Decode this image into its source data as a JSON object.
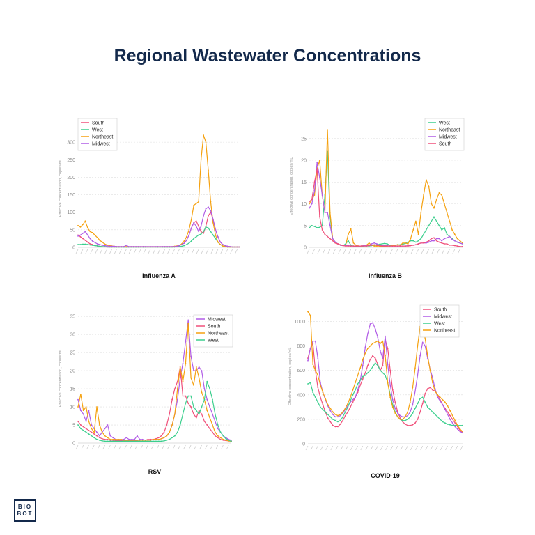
{
  "title": "Regional Wastewater Concentrations",
  "logo": {
    "line1": "BIO",
    "line2": "BOT"
  },
  "colors": {
    "South": "#f0507a",
    "West": "#3ccf8e",
    "Northeast": "#f5a10f",
    "Midwest": "#b15ce6"
  },
  "chart_data": [
    {
      "type": "line",
      "caption": "Influenza A",
      "ylabel": "Effective concentration, copies/mL",
      "ylim": [
        0,
        340
      ],
      "yticks": [
        0,
        50,
        100,
        150,
        200,
        250,
        300
      ],
      "legend_position": "top-left",
      "series": [
        {
          "name": "South",
          "values": [
            35,
            30,
            25,
            20,
            15,
            10,
            8,
            5,
            4,
            3,
            2,
            2,
            1,
            1,
            1,
            1,
            1,
            1,
            1,
            1,
            1,
            1,
            1,
            1,
            1,
            1,
            1,
            1,
            1,
            1,
            1,
            1,
            1,
            1,
            1,
            1,
            1,
            1,
            1,
            1,
            2,
            3,
            5,
            8,
            12,
            20,
            35,
            55,
            70,
            75,
            60,
            45,
            40,
            60,
            90,
            100,
            80,
            50,
            30,
            15,
            8,
            5,
            3,
            2,
            1,
            1,
            1,
            1
          ]
        },
        {
          "name": "West",
          "values": [
            8,
            8,
            9,
            9,
            8,
            7,
            6,
            5,
            4,
            3,
            2,
            2,
            1,
            1,
            1,
            1,
            1,
            1,
            1,
            1,
            1,
            1,
            1,
            1,
            1,
            1,
            1,
            1,
            1,
            1,
            1,
            1,
            1,
            1,
            1,
            1,
            1,
            1,
            1,
            1,
            1,
            2,
            2,
            3,
            5,
            8,
            12,
            18,
            25,
            30,
            35,
            38,
            45,
            58,
            55,
            45,
            35,
            25,
            15,
            8,
            4,
            2,
            1,
            1,
            1,
            1,
            1,
            1
          ]
        },
        {
          "name": "Northeast",
          "values": [
            62,
            58,
            65,
            75,
            55,
            45,
            42,
            35,
            28,
            20,
            15,
            10,
            7,
            5,
            4,
            3,
            2,
            2,
            2,
            2,
            2,
            2,
            2,
            2,
            2,
            2,
            2,
            2,
            2,
            2,
            2,
            2,
            2,
            2,
            2,
            2,
            2,
            2,
            2,
            2,
            3,
            4,
            6,
            10,
            18,
            30,
            50,
            80,
            120,
            125,
            130,
            250,
            320,
            300,
            220,
            130,
            70,
            35,
            15,
            8,
            4,
            2,
            1,
            1,
            1,
            1,
            1,
            1
          ]
        },
        {
          "name": "Midwest",
          "values": [
            32,
            35,
            40,
            45,
            35,
            25,
            18,
            14,
            10,
            8,
            6,
            5,
            4,
            3,
            3,
            3,
            2,
            2,
            2,
            2,
            6,
            2,
            2,
            2,
            2,
            2,
            2,
            2,
            2,
            2,
            2,
            2,
            2,
            2,
            2,
            2,
            2,
            2,
            2,
            2,
            2,
            3,
            5,
            8,
            12,
            20,
            35,
            55,
            70,
            60,
            45,
            60,
            90,
            110,
            115,
            105,
            80,
            50,
            30,
            15,
            8,
            5,
            3,
            2,
            1,
            1,
            1,
            1
          ]
        }
      ]
    },
    {
      "type": "line",
      "caption": "Influenza B",
      "ylabel": "Effective concentration, copies/mL",
      "ylim": [
        0,
        28
      ],
      "yticks": [
        0,
        5,
        10,
        15,
        20,
        25
      ],
      "legend_position": "top-right",
      "series": [
        {
          "name": "West",
          "values": [
            4.5,
            5,
            4.8,
            4.5,
            4.6,
            5,
            12,
            22,
            7,
            2,
            1.2,
            0.8,
            0.5,
            0.4,
            0.8,
            1.5,
            0.5,
            0.3,
            0.2,
            0.2,
            0.2,
            0.3,
            0.3,
            0.3,
            0.4,
            0.5,
            0.6,
            0.7,
            0.8,
            0.9,
            0.8,
            0.5,
            0.4,
            0.5,
            0.6,
            0.6,
            0.7,
            0.9,
            1.2,
            1.5,
            1.5,
            1.2,
            1.5,
            2,
            3,
            4,
            5,
            6,
            7,
            6,
            5,
            4,
            4.5,
            3,
            2.5,
            2,
            1.5,
            1.2,
            1,
            0.8
          ]
        },
        {
          "name": "Northeast",
          "values": [
            10,
            11,
            12,
            18,
            20,
            12,
            8,
            27,
            8,
            2,
            1,
            0.8,
            0.5,
            0.4,
            0.5,
            3,
            4.2,
            1,
            0.5,
            0.3,
            0.3,
            0.4,
            0.5,
            1,
            0.5,
            0.3,
            0.3,
            0.3,
            0.2,
            0.2,
            0.3,
            0.3,
            0.4,
            0.5,
            0.6,
            0.5,
            1,
            1,
            0.8,
            2,
            4,
            6,
            3,
            8,
            12,
            15.5,
            14,
            10,
            9,
            11,
            12.5,
            12,
            10,
            8,
            6,
            4,
            3,
            2,
            1.5,
            1
          ]
        },
        {
          "name": "Midwest",
          "values": [
            9,
            10,
            13,
            19.5,
            16,
            12,
            8,
            8,
            5,
            2,
            1.2,
            0.8,
            0.5,
            0.4,
            0.4,
            0.4,
            0.3,
            0.3,
            0.3,
            0.3,
            0.3,
            0.4,
            0.5,
            0.5,
            0.8,
            1,
            0.8,
            0.5,
            0.4,
            0.4,
            0.4,
            0.3,
            0.3,
            0.3,
            0.3,
            0.3,
            0.3,
            0.3,
            0.4,
            0.5,
            0.5,
            0.6,
            0.8,
            1,
            1,
            1,
            1.2,
            1.5,
            1.5,
            2,
            2,
            1.5,
            2,
            2.2,
            2.5,
            1.8,
            1.5,
            1.2,
            1,
            0.8
          ]
        },
        {
          "name": "South",
          "values": [
            10.5,
            11,
            15,
            18,
            7,
            4,
            3,
            2.5,
            2,
            1.5,
            1,
            0.8,
            0.6,
            0.4,
            0.3,
            0.3,
            0.3,
            0.3,
            0.3,
            0.3,
            0.3,
            0.3,
            0.3,
            0.4,
            0.5,
            0.6,
            0.5,
            0.4,
            0.3,
            0.3,
            0.3,
            0.3,
            0.3,
            0.3,
            0.3,
            0.3,
            0.3,
            0.3,
            0.3,
            0.4,
            0.5,
            0.6,
            0.8,
            1,
            1,
            1.2,
            1.5,
            2,
            2.2,
            1.5,
            1.2,
            1,
            0.8,
            0.8,
            0.5,
            0.5,
            0.4,
            0.3,
            0.2,
            0.2
          ]
        }
      ]
    },
    {
      "type": "line",
      "caption": "RSV",
      "ylabel": "Effective concentration, copies/mL",
      "ylim": [
        0,
        36
      ],
      "yticks": [
        0,
        5,
        10,
        15,
        20,
        25,
        30,
        35
      ],
      "legend_position": "top-right",
      "series": [
        {
          "name": "Midwest",
          "values": [
            12,
            9,
            8,
            6,
            9,
            5,
            4,
            3,
            2,
            3,
            4,
            5,
            2,
            1.5,
            1,
            1,
            1,
            1,
            1.5,
            1,
            1,
            1,
            2,
            1,
            1,
            0.8,
            0.8,
            0.8,
            1,
            1,
            1,
            1.2,
            1.5,
            2,
            3,
            5,
            8,
            12,
            18,
            22,
            28,
            34,
            24,
            20,
            20,
            21,
            20,
            15,
            12,
            10,
            8,
            6,
            4,
            3,
            2,
            1.5,
            1,
            0.8
          ]
        },
        {
          "name": "South",
          "values": [
            6,
            5,
            4.5,
            4,
            3.5,
            3,
            2.5,
            2,
            1.5,
            1.2,
            1,
            1,
            0.8,
            0.8,
            0.7,
            0.7,
            0.7,
            0.7,
            0.7,
            0.7,
            0.7,
            0.7,
            0.7,
            0.8,
            0.8,
            0.8,
            1,
            1,
            1,
            1.2,
            1.5,
            2,
            3,
            5,
            8,
            12,
            15,
            17,
            21,
            13,
            13,
            11,
            10,
            8,
            7,
            9,
            8,
            6,
            5,
            4,
            3,
            2,
            1.5,
            1,
            0.8,
            0.7,
            0.6,
            0.5
          ]
        },
        {
          "name": "Northeast",
          "values": [
            10,
            13.5,
            9,
            10,
            6,
            4,
            3,
            10,
            5,
            3,
            2,
            1.5,
            1,
            1,
            1,
            1,
            1,
            0.8,
            0.8,
            0.8,
            0.8,
            0.8,
            0.8,
            0.8,
            0.8,
            0.8,
            0.8,
            0.8,
            1,
            1,
            1,
            1.2,
            1.5,
            2,
            3,
            5,
            8,
            15,
            21,
            17,
            22,
            33,
            18,
            16,
            21,
            18,
            14,
            12,
            9,
            7,
            5,
            3,
            2,
            1.5,
            1,
            0.8,
            0.6,
            0.5
          ]
        },
        {
          "name": "West",
          "values": [
            5,
            4,
            3.5,
            3,
            2.5,
            2,
            1.5,
            1,
            0.8,
            0.6,
            0.5,
            0.5,
            0.5,
            0.5,
            0.5,
            0.5,
            0.5,
            0.5,
            0.5,
            0.5,
            0.5,
            0.5,
            0.5,
            0.5,
            0.5,
            0.5,
            0.5,
            0.5,
            0.5,
            0.5,
            0.5,
            0.5,
            0.6,
            0.8,
            1,
            1.5,
            2,
            3,
            5,
            8,
            11,
            13,
            13,
            10,
            9,
            8,
            10,
            12,
            17,
            15,
            12,
            8,
            5,
            3,
            2,
            1.2,
            0.8,
            0.5
          ]
        }
      ]
    },
    {
      "type": "line",
      "caption": "COVID-19",
      "ylabel": "Effective concentration, copies/mL",
      "ylim": [
        0,
        1100
      ],
      "yticks": [
        0,
        200,
        400,
        600,
        800,
        1000
      ],
      "legend_position": "top-right",
      "series": [
        {
          "name": "South",
          "values": [
            700,
            780,
            820,
            600,
            460,
            380,
            320,
            260,
            210,
            180,
            150,
            140,
            140,
            160,
            190,
            230,
            260,
            300,
            340,
            380,
            420,
            480,
            530,
            580,
            640,
            690,
            720,
            700,
            650,
            600,
            640,
            850,
            780,
            600,
            440,
            340,
            260,
            210,
            180,
            160,
            150,
            150,
            155,
            170,
            200,
            260,
            330,
            410,
            450,
            460,
            440,
            430,
            400,
            360,
            320,
            290,
            260,
            230,
            200,
            170,
            140,
            110,
            90
          ]
        },
        {
          "name": "Midwest",
          "values": [
            680,
            780,
            840,
            840,
            700,
            500,
            420,
            360,
            310,
            270,
            240,
            220,
            220,
            230,
            250,
            280,
            310,
            340,
            360,
            380,
            440,
            520,
            640,
            790,
            900,
            980,
            990,
            940,
            870,
            760,
            700,
            880,
            650,
            480,
            360,
            290,
            250,
            230,
            220,
            220,
            230,
            260,
            320,
            430,
            560,
            720,
            830,
            800,
            700,
            610,
            540,
            450,
            380,
            350,
            320,
            280,
            240,
            200,
            170,
            140,
            120,
            100,
            90
          ]
        },
        {
          "name": "West",
          "values": [
            490,
            500,
            420,
            380,
            340,
            300,
            280,
            260,
            240,
            220,
            200,
            190,
            180,
            190,
            220,
            260,
            300,
            350,
            400,
            440,
            490,
            520,
            550,
            560,
            580,
            600,
            630,
            660,
            640,
            600,
            580,
            560,
            500,
            400,
            320,
            260,
            220,
            200,
            190,
            190,
            200,
            220,
            250,
            290,
            330,
            370,
            380,
            340,
            300,
            280,
            260,
            240,
            220,
            200,
            180,
            170,
            160,
            155,
            150,
            150,
            150,
            150,
            150
          ]
        },
        {
          "name": "Northeast",
          "values": [
            1080,
            1050,
            650,
            600,
            560,
            480,
            420,
            370,
            320,
            290,
            260,
            240,
            230,
            240,
            260,
            290,
            330,
            380,
            440,
            500,
            560,
            620,
            690,
            740,
            780,
            800,
            820,
            830,
            840,
            820,
            840,
            720,
            500,
            380,
            300,
            250,
            220,
            200,
            200,
            220,
            260,
            340,
            460,
            620,
            800,
            960,
            980,
            860,
            720,
            600,
            500,
            430,
            400,
            380,
            360,
            340,
            310,
            270,
            230,
            190,
            150,
            120,
            100
          ]
        }
      ]
    }
  ]
}
